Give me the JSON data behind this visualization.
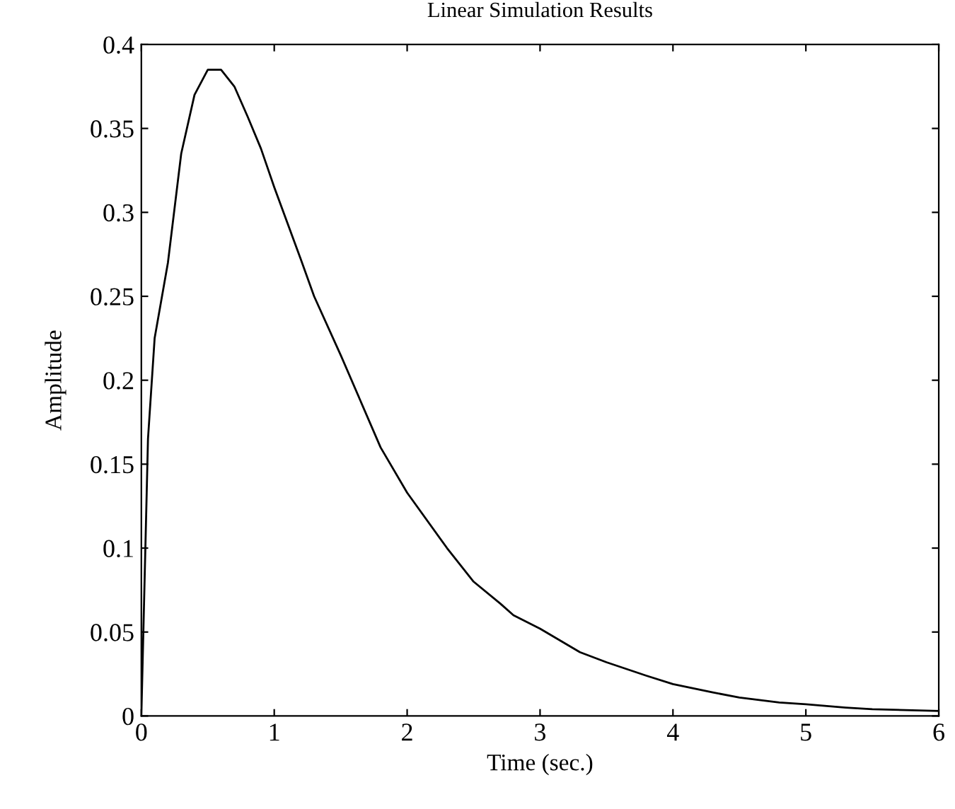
{
  "chart_data": {
    "type": "line",
    "title": "Linear Simulation Results",
    "xlabel": "Time (sec.)",
    "ylabel": "Amplitude",
    "x": [
      0,
      0.05,
      0.1,
      0.2,
      0.3,
      0.4,
      0.5,
      0.6,
      0.7,
      0.8,
      0.9,
      1.0,
      1.2,
      1.3,
      1.5,
      1.8,
      2.0,
      2.3,
      2.5,
      2.7,
      2.8,
      3.0,
      3.3,
      3.5,
      3.8,
      4.0,
      4.3,
      4.5,
      4.8,
      5.0,
      5.3,
      5.5,
      6.0
    ],
    "series": [
      {
        "color": "#000000",
        "values": [
          0,
          0.165,
          0.225,
          0.27,
          0.335,
          0.37,
          0.385,
          0.385,
          0.375,
          0.357,
          0.338,
          0.315,
          0.272,
          0.25,
          0.215,
          0.16,
          0.133,
          0.1,
          0.08,
          0.067,
          0.06,
          0.052,
          0.038,
          0.032,
          0.024,
          0.019,
          0.014,
          0.011,
          0.008,
          0.007,
          0.005,
          0.004,
          0.003
        ]
      }
    ],
    "xlim": [
      0,
      6
    ],
    "xticks": [
      0,
      1,
      2,
      3,
      4,
      5,
      6
    ],
    "ylim": [
      0,
      0.4
    ],
    "yticks": [
      {
        "value": 0,
        "label": "0"
      },
      0.05,
      {
        "value": 0.1,
        "label": "0.1"
      },
      0.15,
      {
        "value": 0.2,
        "label": "0.2"
      },
      0.25,
      {
        "value": 0.3,
        "label": "0.3"
      },
      0.35,
      {
        "value": 0.4,
        "label": "0.4"
      }
    ],
    "grid": false,
    "legend": false,
    "marker": "none",
    "line_style": "solid"
  }
}
